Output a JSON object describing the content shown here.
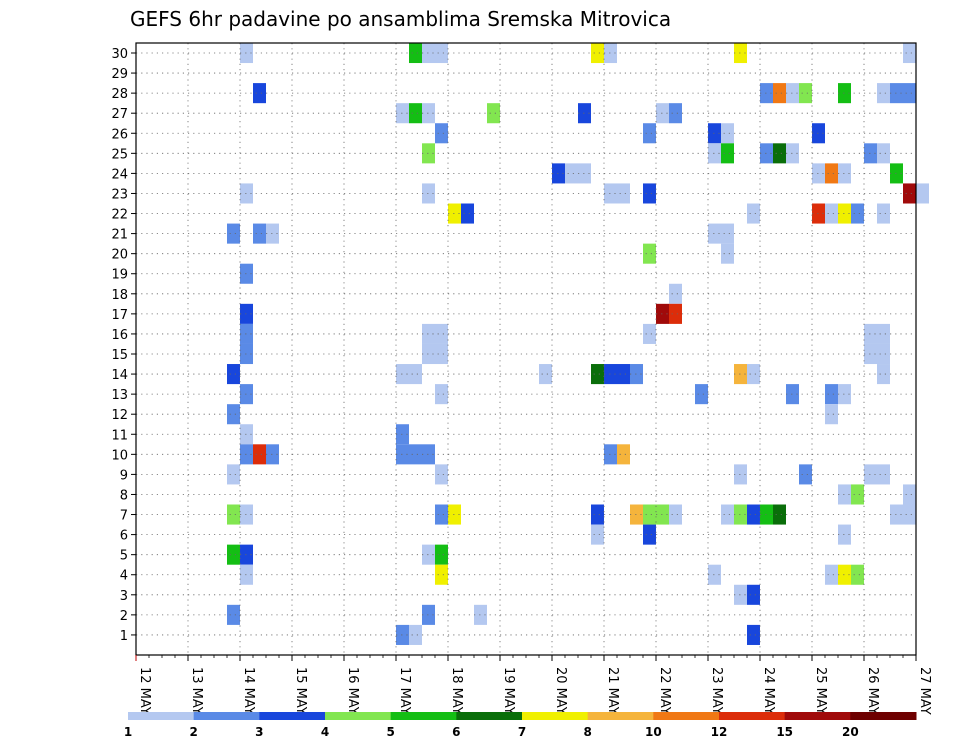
{
  "chart_data": {
    "type": "heatmap",
    "title": "GEFS 6hr padavine po ansamblima Sremska Mitrovica",
    "x_dates": [
      "12 MAY",
      "13 MAY",
      "14 MAY",
      "15 MAY",
      "16 MAY",
      "17 MAY",
      "18 MAY",
      "19 MAY",
      "20 MAY",
      "21 MAY",
      "22 MAY",
      "23 MAY",
      "24 MAY",
      "25 MAY",
      "26 MAY",
      "27 MAY"
    ],
    "y_members": [
      "1",
      "2",
      "3",
      "4",
      "5",
      "6",
      "7",
      "8",
      "9",
      "10",
      "11",
      "12",
      "13",
      "14",
      "15",
      "16",
      "17",
      "18",
      "19",
      "20",
      "21",
      "22",
      "23",
      "24",
      "25",
      "26",
      "27",
      "28",
      "29",
      "30"
    ],
    "steps_per_day": 4,
    "grid": true,
    "colorbar": {
      "labels": [
        "1",
        "2",
        "3",
        "4",
        "5",
        "6",
        "7",
        "8",
        "10",
        "12",
        "15",
        "20"
      ],
      "colors": [
        "#b4c8f0",
        "#5a8ae6",
        "#1846dc",
        "#82e650",
        "#14be14",
        "#0a6e0a",
        "#f0f000",
        "#f5b43c",
        "#f07814",
        "#dc2d0a",
        "#a00a0a",
        "#6e0000"
      ]
    },
    "cells": [
      {
        "member": 30,
        "step": 8,
        "value": 1.5
      },
      {
        "member": 30,
        "step": 21,
        "value": 5.5
      },
      {
        "member": 30,
        "step": 22,
        "value": 1.5
      },
      {
        "member": 30,
        "step": 23,
        "value": 1.5
      },
      {
        "member": 30,
        "step": 35,
        "value": 7.5
      },
      {
        "member": 30,
        "step": 36,
        "value": 1.5
      },
      {
        "member": 30,
        "step": 46,
        "value": 7.5
      },
      {
        "member": 30,
        "step": 59,
        "value": 1.5
      },
      {
        "member": 28,
        "step": 9,
        "value": 3.5
      },
      {
        "member": 28,
        "step": 48,
        "value": 2.5
      },
      {
        "member": 28,
        "step": 49,
        "value": 11
      },
      {
        "member": 28,
        "step": 50,
        "value": 1.5
      },
      {
        "member": 28,
        "step": 51,
        "value": 4.5
      },
      {
        "member": 28,
        "step": 54,
        "value": 5.5
      },
      {
        "member": 28,
        "step": 57,
        "value": 1.5
      },
      {
        "member": 28,
        "step": 58,
        "value": 2.5
      },
      {
        "member": 28,
        "step": 59,
        "value": 2.5
      },
      {
        "member": 27,
        "step": 20,
        "value": 1.5
      },
      {
        "member": 27,
        "step": 21,
        "value": 5.5
      },
      {
        "member": 27,
        "step": 22,
        "value": 1.5
      },
      {
        "member": 27,
        "step": 27,
        "value": 4.5
      },
      {
        "member": 27,
        "step": 34,
        "value": 3.5
      },
      {
        "member": 27,
        "step": 40,
        "value": 1.5
      },
      {
        "member": 27,
        "step": 41,
        "value": 2.5
      },
      {
        "member": 26,
        "step": 23,
        "value": 2.5
      },
      {
        "member": 26,
        "step": 39,
        "value": 2.5
      },
      {
        "member": 26,
        "step": 44,
        "value": 3.5
      },
      {
        "member": 26,
        "step": 45,
        "value": 1.5
      },
      {
        "member": 26,
        "step": 52,
        "value": 3.5
      },
      {
        "member": 25,
        "step": 22,
        "value": 4.5
      },
      {
        "member": 25,
        "step": 44,
        "value": 1.5
      },
      {
        "member": 25,
        "step": 45,
        "value": 5.5
      },
      {
        "member": 25,
        "step": 48,
        "value": 2.5
      },
      {
        "member": 25,
        "step": 49,
        "value": 6.5
      },
      {
        "member": 25,
        "step": 50,
        "value": 1.5
      },
      {
        "member": 25,
        "step": 56,
        "value": 2.5
      },
      {
        "member": 25,
        "step": 57,
        "value": 1.5
      },
      {
        "member": 24,
        "step": 32,
        "value": 3.5
      },
      {
        "member": 24,
        "step": 33,
        "value": 1.5
      },
      {
        "member": 24,
        "step": 34,
        "value": 1.5
      },
      {
        "member": 24,
        "step": 52,
        "value": 1.5
      },
      {
        "member": 24,
        "step": 53,
        "value": 11
      },
      {
        "member": 24,
        "step": 54,
        "value": 1.5
      },
      {
        "member": 24,
        "step": 58,
        "value": 5.5
      },
      {
        "member": 23,
        "step": 8,
        "value": 1.5
      },
      {
        "member": 23,
        "step": 22,
        "value": 1.5
      },
      {
        "member": 23,
        "step": 36,
        "value": 1.5
      },
      {
        "member": 23,
        "step": 37,
        "value": 1.5
      },
      {
        "member": 23,
        "step": 39,
        "value": 3.5
      },
      {
        "member": 23,
        "step": 59,
        "value": 17
      },
      {
        "member": 23,
        "step": 60,
        "value": 1.5
      },
      {
        "member": 22,
        "step": 24,
        "value": 7.5
      },
      {
        "member": 22,
        "step": 25,
        "value": 3.5
      },
      {
        "member": 22,
        "step": 47,
        "value": 1.5
      },
      {
        "member": 22,
        "step": 52,
        "value": 13
      },
      {
        "member": 22,
        "step": 53,
        "value": 1.5
      },
      {
        "member": 22,
        "step": 54,
        "value": 7.5
      },
      {
        "member": 22,
        "step": 55,
        "value": 2.5
      },
      {
        "member": 22,
        "step": 57,
        "value": 1.5
      },
      {
        "member": 21,
        "step": 7,
        "value": 2.5
      },
      {
        "member": 21,
        "step": 9,
        "value": 2.5
      },
      {
        "member": 21,
        "step": 10,
        "value": 1.5
      },
      {
        "member": 21,
        "step": 44,
        "value": 1.5
      },
      {
        "member": 21,
        "step": 45,
        "value": 1.5
      },
      {
        "member": 20,
        "step": 39,
        "value": 4.5
      },
      {
        "member": 20,
        "step": 45,
        "value": 1.5
      },
      {
        "member": 19,
        "step": 8,
        "value": 2.5
      },
      {
        "member": 18,
        "step": 41,
        "value": 1.5
      },
      {
        "member": 17,
        "step": 8,
        "value": 3.5
      },
      {
        "member": 17,
        "step": 40,
        "value": 17
      },
      {
        "member": 17,
        "step": 41,
        "value": 13
      },
      {
        "member": 16,
        "step": 8,
        "value": 2.5
      },
      {
        "member": 16,
        "step": 22,
        "value": 1.5
      },
      {
        "member": 16,
        "step": 23,
        "value": 1.5
      },
      {
        "member": 16,
        "step": 39,
        "value": 1.5
      },
      {
        "member": 16,
        "step": 56,
        "value": 1.5
      },
      {
        "member": 16,
        "step": 57,
        "value": 1.5
      },
      {
        "member": 15,
        "step": 8,
        "value": 2.5
      },
      {
        "member": 15,
        "step": 22,
        "value": 1.5
      },
      {
        "member": 15,
        "step": 23,
        "value": 1.5
      },
      {
        "member": 15,
        "step": 56,
        "value": 1.5
      },
      {
        "member": 15,
        "step": 57,
        "value": 1.5
      },
      {
        "member": 14,
        "step": 7,
        "value": 3.5
      },
      {
        "member": 14,
        "step": 20,
        "value": 1.5
      },
      {
        "member": 14,
        "step": 21,
        "value": 1.5
      },
      {
        "member": 14,
        "step": 31,
        "value": 1.5
      },
      {
        "member": 14,
        "step": 35,
        "value": 6.5
      },
      {
        "member": 14,
        "step": 36,
        "value": 3.5
      },
      {
        "member": 14,
        "step": 37,
        "value": 3.5
      },
      {
        "member": 14,
        "step": 38,
        "value": 2.5
      },
      {
        "member": 14,
        "step": 46,
        "value": 9
      },
      {
        "member": 14,
        "step": 47,
        "value": 1.5
      },
      {
        "member": 14,
        "step": 57,
        "value": 1.5
      },
      {
        "member": 13,
        "step": 8,
        "value": 2.5
      },
      {
        "member": 13,
        "step": 23,
        "value": 1.5
      },
      {
        "member": 13,
        "step": 43,
        "value": 2.5
      },
      {
        "member": 13,
        "step": 50,
        "value": 2.5
      },
      {
        "member": 13,
        "step": 53,
        "value": 2.5
      },
      {
        "member": 13,
        "step": 54,
        "value": 1.5
      },
      {
        "member": 12,
        "step": 7,
        "value": 2.5
      },
      {
        "member": 12,
        "step": 53,
        "value": 1.5
      },
      {
        "member": 11,
        "step": 8,
        "value": 1.5
      },
      {
        "member": 11,
        "step": 20,
        "value": 2.5
      },
      {
        "member": 10,
        "step": 8,
        "value": 2.5
      },
      {
        "member": 10,
        "step": 9,
        "value": 13
      },
      {
        "member": 10,
        "step": 10,
        "value": 2.5
      },
      {
        "member": 10,
        "step": 20,
        "value": 2.5
      },
      {
        "member": 10,
        "step": 21,
        "value": 2.5
      },
      {
        "member": 10,
        "step": 22,
        "value": 2.5
      },
      {
        "member": 10,
        "step": 36,
        "value": 2.5
      },
      {
        "member": 10,
        "step": 37,
        "value": 9
      },
      {
        "member": 9,
        "step": 7,
        "value": 1.5
      },
      {
        "member": 9,
        "step": 23,
        "value": 1.5
      },
      {
        "member": 9,
        "step": 46,
        "value": 1.5
      },
      {
        "member": 9,
        "step": 51,
        "value": 2.5
      },
      {
        "member": 9,
        "step": 56,
        "value": 1.5
      },
      {
        "member": 9,
        "step": 57,
        "value": 1.5
      },
      {
        "member": 8,
        "step": 54,
        "value": 1.5
      },
      {
        "member": 8,
        "step": 55,
        "value": 4.5
      },
      {
        "member": 8,
        "step": 59,
        "value": 1.5
      },
      {
        "member": 7,
        "step": 7,
        "value": 4.5
      },
      {
        "member": 7,
        "step": 8,
        "value": 1.5
      },
      {
        "member": 7,
        "step": 23,
        "value": 2.5
      },
      {
        "member": 7,
        "step": 24,
        "value": 7.5
      },
      {
        "member": 7,
        "step": 35,
        "value": 3.5
      },
      {
        "member": 7,
        "step": 38,
        "value": 9
      },
      {
        "member": 7,
        "step": 39,
        "value": 4.5
      },
      {
        "member": 7,
        "step": 40,
        "value": 4.5
      },
      {
        "member": 7,
        "step": 41,
        "value": 1.5
      },
      {
        "member": 7,
        "step": 45,
        "value": 1.5
      },
      {
        "member": 7,
        "step": 46,
        "value": 4.5
      },
      {
        "member": 7,
        "step": 47,
        "value": 3.5
      },
      {
        "member": 7,
        "step": 48,
        "value": 5.5
      },
      {
        "member": 7,
        "step": 49,
        "value": 6.5
      },
      {
        "member": 7,
        "step": 58,
        "value": 1.5
      },
      {
        "member": 7,
        "step": 59,
        "value": 1.5
      },
      {
        "member": 6,
        "step": 35,
        "value": 1.5
      },
      {
        "member": 6,
        "step": 39,
        "value": 3.5
      },
      {
        "member": 6,
        "step": 54,
        "value": 1.5
      },
      {
        "member": 5,
        "step": 7,
        "value": 5.5
      },
      {
        "member": 5,
        "step": 8,
        "value": 3.5
      },
      {
        "member": 5,
        "step": 22,
        "value": 1.5
      },
      {
        "member": 5,
        "step": 23,
        "value": 5.5
      },
      {
        "member": 4,
        "step": 8,
        "value": 1.5
      },
      {
        "member": 4,
        "step": 23,
        "value": 7.5
      },
      {
        "member": 4,
        "step": 44,
        "value": 1.5
      },
      {
        "member": 4,
        "step": 53,
        "value": 1.5
      },
      {
        "member": 4,
        "step": 54,
        "value": 7.5
      },
      {
        "member": 4,
        "step": 55,
        "value": 4.5
      },
      {
        "member": 3,
        "step": 46,
        "value": 1.5
      },
      {
        "member": 3,
        "step": 47,
        "value": 3.5
      },
      {
        "member": 2,
        "step": 7,
        "value": 2.5
      },
      {
        "member": 2,
        "step": 22,
        "value": 2.5
      },
      {
        "member": 2,
        "step": 26,
        "value": 1.5
      },
      {
        "member": 1,
        "step": 20,
        "value": 2.5
      },
      {
        "member": 1,
        "step": 21,
        "value": 1.5
      },
      {
        "member": 1,
        "step": 47,
        "value": 3.5
      }
    ]
  }
}
